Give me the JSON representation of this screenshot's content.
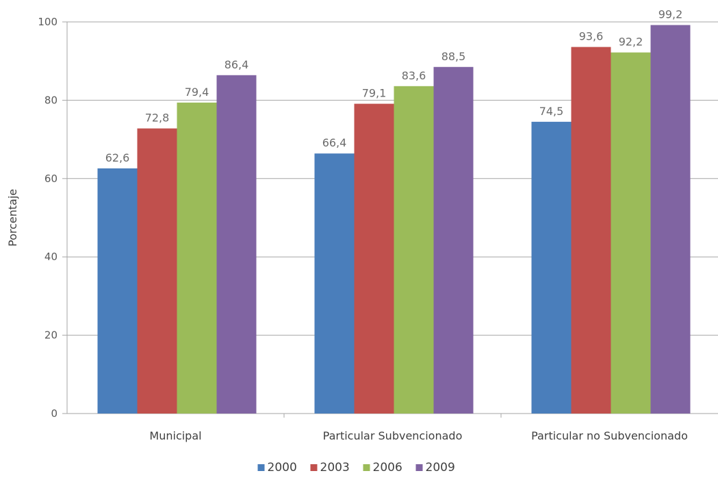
{
  "chart_data": {
    "type": "bar",
    "categories": [
      "Municipal",
      "Particular Subvencionado",
      "Particular no Subvencionado"
    ],
    "series": [
      {
        "name": "2000",
        "color": "#4a7ebb",
        "values": [
          62.6,
          66.4,
          74.5
        ],
        "labels": [
          "62,6",
          "66,4",
          "74,5"
        ]
      },
      {
        "name": "2003",
        "color": "#c0504d",
        "values": [
          72.8,
          79.1,
          93.6
        ],
        "labels": [
          "72,8",
          "79,1",
          "93,6"
        ]
      },
      {
        "name": "2006",
        "color": "#9bbb59",
        "values": [
          79.4,
          83.6,
          92.2
        ],
        "labels": [
          "79,4",
          "83,6",
          "92,2"
        ]
      },
      {
        "name": "2009",
        "color": "#8064a2",
        "values": [
          86.4,
          88.5,
          99.2
        ],
        "labels": [
          "86,4",
          "88,5",
          "99,2"
        ]
      }
    ],
    "title": "",
    "xlabel": "",
    "ylabel": "Porcentaje",
    "ylim": [
      0,
      100
    ],
    "yticks": [
      0,
      20,
      40,
      60,
      80,
      100
    ],
    "grid": true,
    "legend_position": "bottom"
  }
}
